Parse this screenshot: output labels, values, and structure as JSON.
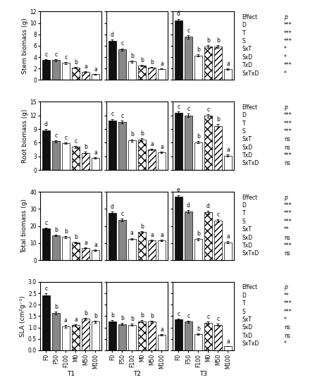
{
  "chart_data": [
    {
      "type": "bar",
      "categories": [
        "F0",
        "F50",
        "F100",
        "M0",
        "M50",
        "M100"
      ],
      "values": [
        3.55,
        3.45,
        3.0,
        2.15,
        1.35,
        1.0
      ],
      "errors": [
        0.12,
        0.15,
        0.18,
        0.1,
        0.12,
        0.08
      ],
      "letters": [
        "c",
        "c",
        "c",
        "b",
        "a",
        "a"
      ],
      "colors": [
        "#111111",
        "#888888",
        "#ffffff",
        "#ffffff",
        "#ffffff",
        "#ffffff"
      ],
      "ylim": [
        0,
        12
      ],
      "yticks": [
        0,
        2,
        4,
        6,
        8,
        10,
        12
      ],
      "ylabel": "Stem biomass (g)",
      "tick_labels": "y"
    },
    {
      "type": "bar",
      "categories": [
        "F0",
        "F50",
        "F100",
        "M0",
        "M50",
        "M100"
      ],
      "values": [
        6.9,
        5.35,
        3.2,
        2.55,
        2.2,
        1.95
      ],
      "errors": [
        0.25,
        0.2,
        0.15,
        0.12,
        0.1,
        0.1
      ],
      "letters": [
        "d",
        "c",
        "b",
        "b",
        "b",
        "a"
      ],
      "colors": [
        "#111111",
        "#888888",
        "#ffffff",
        "#ffffff",
        "#ffffff",
        "#ffffff"
      ],
      "ylim": [
        0,
        12
      ],
      "yticks": [
        0,
        2,
        4,
        6,
        8,
        10,
        12
      ],
      "tick_labels": false
    },
    {
      "type": "bar",
      "categories": [
        "F0",
        "F50",
        "F100",
        "M0",
        "M50",
        "M100"
      ],
      "values": [
        10.4,
        7.55,
        4.3,
        5.85,
        5.85,
        1.9
      ],
      "errors": [
        0.35,
        0.3,
        0.2,
        0.22,
        0.22,
        0.12
      ],
      "letters": [
        "d",
        "c",
        "b",
        "b",
        "b",
        "a"
      ],
      "colors": [
        "#111111",
        "#888888",
        "#ffffff",
        "#ffffff",
        "#ffffff",
        "#ffffff"
      ],
      "ylim": [
        0,
        12
      ],
      "yticks": [
        0,
        2,
        4,
        6,
        8,
        10,
        12
      ],
      "tick_labels": false,
      "effect_table": {
        "effect": [
          "Effect",
          "D",
          "T",
          "S",
          "SxT",
          "SxD",
          "TxD",
          "SxTxD"
        ],
        "p": [
          "p",
          "***",
          "***",
          "***",
          "*",
          "*",
          "***",
          "*"
        ]
      }
    },
    {
      "type": "bar",
      "categories": [
        "F0",
        "F50",
        "F100",
        "M0",
        "M50",
        "M100"
      ],
      "values": [
        8.7,
        6.3,
        5.9,
        5.1,
        3.8,
        2.7
      ],
      "errors": [
        0.3,
        0.25,
        0.22,
        0.2,
        0.18,
        0.15
      ],
      "letters": [
        "d",
        "c",
        "c",
        "c",
        "b",
        "a"
      ],
      "colors": [
        "#111111",
        "#888888",
        "#ffffff",
        "#ffffff",
        "#ffffff",
        "#ffffff"
      ],
      "ylim": [
        0,
        15
      ],
      "yticks": [
        0,
        3,
        6,
        9,
        12,
        15
      ],
      "ylabel": "Root biomass (g)",
      "tick_labels": "y"
    },
    {
      "type": "bar",
      "categories": [
        "F0",
        "F50",
        "F100",
        "M0",
        "M50",
        "M100"
      ],
      "values": [
        10.9,
        10.6,
        6.5,
        6.7,
        4.5,
        3.9
      ],
      "errors": [
        0.35,
        0.32,
        0.25,
        0.28,
        0.2,
        0.18
      ],
      "letters": [
        "c",
        "c",
        "b",
        "b",
        "a",
        "a"
      ],
      "colors": [
        "#111111",
        "#888888",
        "#ffffff",
        "#ffffff",
        "#ffffff",
        "#ffffff"
      ],
      "ylim": [
        0,
        15
      ],
      "yticks": [
        0,
        3,
        6,
        9,
        12,
        15
      ],
      "tick_labels": false
    },
    {
      "type": "bar",
      "categories": [
        "F0",
        "F50",
        "F100",
        "M0",
        "M50",
        "M100"
      ],
      "values": [
        12.5,
        12.0,
        6.1,
        11.9,
        9.7,
        3.2
      ],
      "errors": [
        0.4,
        0.38,
        0.25,
        0.38,
        0.35,
        0.18
      ],
      "letters": [
        "c",
        "c",
        "b",
        "c",
        "b",
        "a"
      ],
      "colors": [
        "#111111",
        "#888888",
        "#ffffff",
        "#ffffff",
        "#ffffff",
        "#ffffff"
      ],
      "ylim": [
        0,
        15
      ],
      "yticks": [
        0,
        3,
        6,
        9,
        12,
        15
      ],
      "tick_labels": false,
      "effect_table": {
        "effect": [
          "Effect",
          "D",
          "T",
          "S",
          "SxT",
          "SxD",
          "TxD",
          "SxTxD"
        ],
        "p": [
          "p",
          "***",
          "***",
          "***",
          "ns",
          "ns",
          "***",
          "ns"
        ]
      }
    },
    {
      "type": "bar",
      "categories": [
        "F0",
        "F50",
        "F100",
        "M0",
        "M50",
        "M100"
      ],
      "values": [
        18.5,
        14.5,
        13.5,
        10.2,
        7.2,
        5.8
      ],
      "errors": [
        0.6,
        0.5,
        0.5,
        0.4,
        0.3,
        0.25
      ],
      "letters": [
        "c",
        "b",
        "b",
        "b",
        "a",
        "a"
      ],
      "colors": [
        "#111111",
        "#888888",
        "#ffffff",
        "#ffffff",
        "#ffffff",
        "#ffffff"
      ],
      "ylim": [
        0,
        40
      ],
      "yticks": [
        0,
        10,
        20,
        30,
        40
      ],
      "ylabel": "Total biomass (g)",
      "tick_labels": "y"
    },
    {
      "type": "bar",
      "categories": [
        "F0",
        "F50",
        "F100",
        "M0",
        "M50",
        "M100"
      ],
      "values": [
        27.5,
        23.5,
        12.5,
        16.5,
        11.5,
        11.5
      ],
      "errors": [
        0.9,
        0.8,
        0.5,
        0.6,
        0.45,
        0.45
      ],
      "letters": [
        "d",
        "c",
        "a",
        "b",
        "a",
        "a"
      ],
      "colors": [
        "#111111",
        "#888888",
        "#ffffff",
        "#ffffff",
        "#ffffff",
        "#ffffff"
      ],
      "ylim": [
        0,
        40
      ],
      "yticks": [
        0,
        10,
        20,
        30,
        40
      ],
      "tick_labels": false
    },
    {
      "type": "bar",
      "categories": [
        "F0",
        "F50",
        "F100",
        "M0",
        "M50",
        "M100"
      ],
      "values": [
        37.0,
        28.5,
        12.2,
        28.0,
        23.0,
        10.5
      ],
      "errors": [
        1.2,
        0.95,
        0.5,
        0.95,
        0.8,
        0.45
      ],
      "letters": [
        "e",
        "d",
        "b",
        "d",
        "c",
        "a"
      ],
      "colors": [
        "#111111",
        "#888888",
        "#ffffff",
        "#ffffff",
        "#ffffff",
        "#ffffff"
      ],
      "ylim": [
        0,
        40
      ],
      "yticks": [
        0,
        10,
        20,
        30,
        40
      ],
      "tick_labels": false,
      "effect_table": {
        "effect": [
          "Effect",
          "D",
          "T",
          "S",
          "SxT",
          "SxD",
          "TxD",
          "SxTxD"
        ],
        "p": [
          "p",
          "***",
          "***",
          "***",
          "**",
          "ns",
          "***",
          "ns"
        ]
      }
    },
    {
      "type": "bar",
      "categories": [
        "F0",
        "F50",
        "F100",
        "M0",
        "M50",
        "M100"
      ],
      "values": [
        2.42,
        1.65,
        1.05,
        1.1,
        1.38,
        1.25
      ],
      "errors": [
        0.08,
        0.06,
        0.05,
        0.05,
        0.05,
        0.05
      ],
      "letters": [
        "c",
        "b",
        "a",
        "a",
        "b",
        "b"
      ],
      "colors": [
        "#111111",
        "#888888",
        "#ffffff",
        "#ffffff",
        "#ffffff",
        "#ffffff"
      ],
      "ylim": [
        0,
        3.0
      ],
      "yticks": [
        0.0,
        0.5,
        1.0,
        1.5,
        2.0,
        2.5,
        3.0
      ],
      "ylabel": "SLA (cm²g⁻¹)",
      "xlabel": "T1"
    },
    {
      "type": "bar",
      "categories": [
        "F0",
        "F50",
        "F100",
        "M0",
        "M50",
        "M100"
      ],
      "values": [
        1.28,
        1.15,
        1.12,
        1.28,
        1.25,
        0.68
      ],
      "errors": [
        0.05,
        0.04,
        0.04,
        0.05,
        0.05,
        0.03
      ],
      "letters": [
        "b",
        "b",
        "b",
        "b",
        "b",
        "a"
      ],
      "colors": [
        "#111111",
        "#888888",
        "#ffffff",
        "#ffffff",
        "#ffffff",
        "#ffffff"
      ],
      "ylim": [
        0,
        3.0
      ],
      "yticks": [
        0.0,
        0.5,
        1.0,
        1.5,
        2.0,
        2.5,
        3.0
      ],
      "xlabel": "T2",
      "tick_labels": "x"
    },
    {
      "type": "bar",
      "categories": [
        "F0",
        "F50",
        "F100",
        "M0",
        "M50",
        "M100"
      ],
      "values": [
        1.35,
        1.25,
        0.72,
        1.2,
        1.12,
        0.18
      ],
      "errors": [
        0.05,
        0.05,
        0.03,
        0.05,
        0.04,
        0.01
      ],
      "letters": [
        "c",
        "c",
        "b",
        "c",
        "c",
        "a"
      ],
      "colors": [
        "#111111",
        "#888888",
        "#ffffff",
        "#ffffff",
        "#ffffff",
        "#ffffff"
      ],
      "ylim": [
        0,
        3.0
      ],
      "yticks": [
        0.0,
        0.5,
        1.0,
        1.5,
        2.0,
        2.5,
        3.0
      ],
      "xlabel": "T3",
      "tick_labels": "x",
      "effect_table": {
        "effect": [
          "Effect",
          "D",
          "T",
          "S",
          "SxT",
          "SxD",
          "TxD",
          "SxTxD"
        ],
        "p": [
          "p",
          "**",
          "***",
          "***",
          "*",
          "ns",
          "ns",
          "*"
        ]
      }
    }
  ]
}
